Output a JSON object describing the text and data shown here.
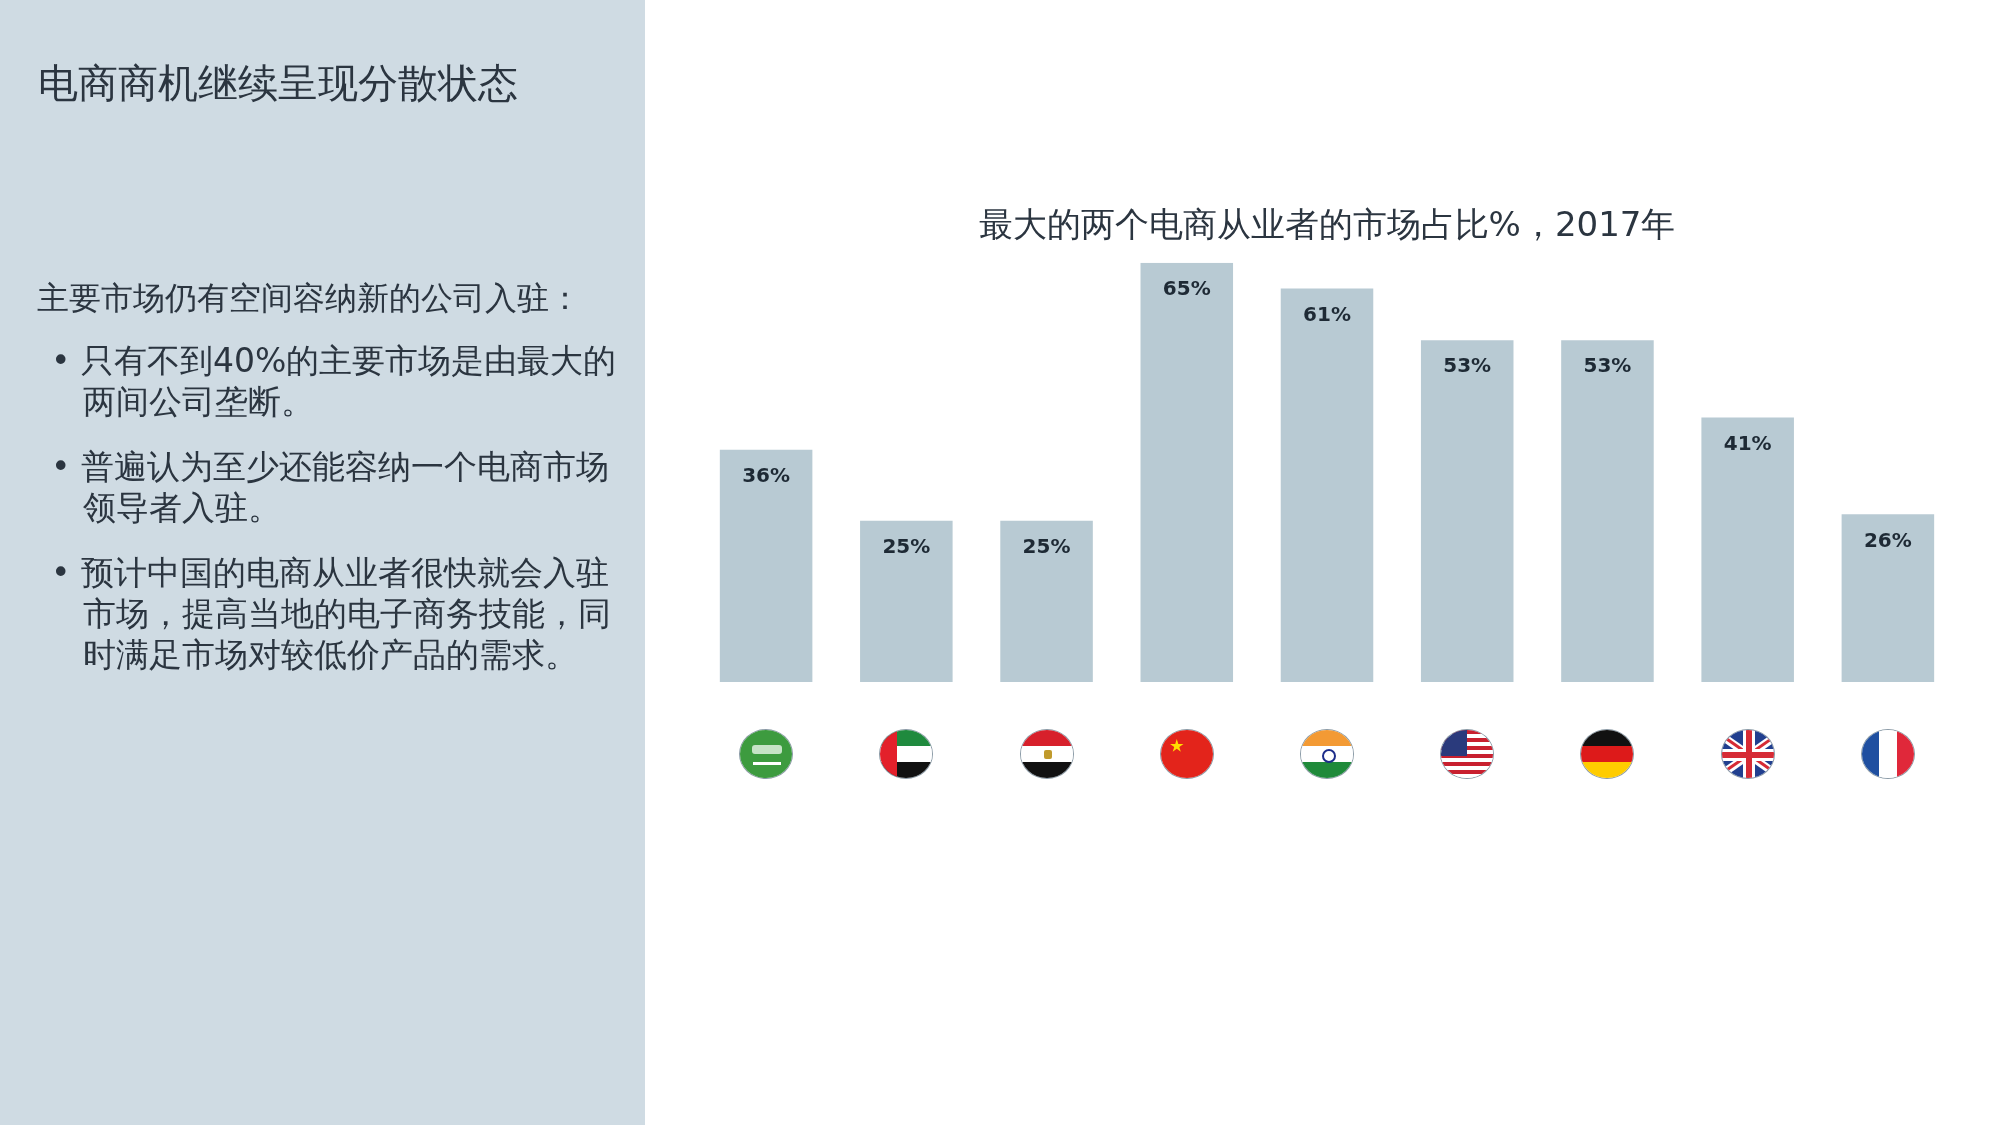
{
  "chart_data": [
    {
      "type": "other",
      "title": "电商商机继续呈现分散状态",
      "subtitle": "主要市场仍有空间容纳新的公司入驻：",
      "annotations": [
        "• 只有不到40%的主要市场是由最大的两间公司垄断。",
        "• 普遍认为至少还能容纳一个电商市场领导者入驻。",
        "• 预计中国的电商从业者很快就会入驻市场，提高当地的电子商务技能，同时满足市场对较低价产品的需求。"
      ]
    },
    {
      "type": "bar",
      "title": "最大的两个电商从业者的市场占比%，2017年",
      "categories": [
        null,
        null,
        null,
        null,
        null,
        null,
        null,
        null,
        null
      ],
      "values": [
        36,
        25,
        25,
        65,
        61,
        53,
        53,
        41,
        26
      ],
      "color": "#b8cad3",
      "value_labels": [
        "36%",
        "25%",
        "25%",
        "65%",
        "61%",
        "53%",
        "53%",
        "41%",
        "26%"
      ],
      "tick_labels": false
    }
  ]
}
